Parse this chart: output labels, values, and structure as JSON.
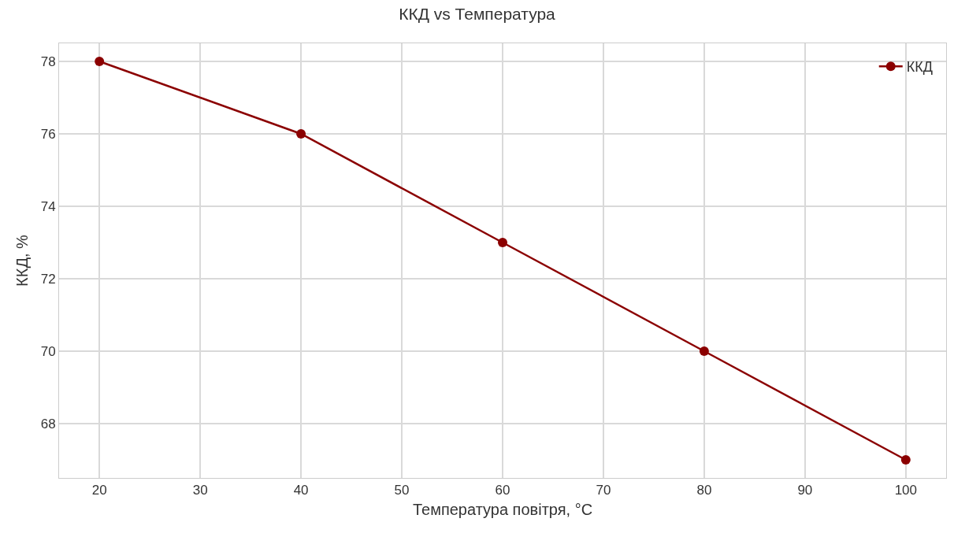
{
  "chart_data": {
    "type": "line",
    "title": "ККД vs Температура",
    "xlabel": "Температура повітря, °C",
    "ylabel": "ККД, %",
    "x": [
      20,
      40,
      60,
      80,
      100
    ],
    "series": [
      {
        "name": "ККД",
        "color": "#8b0000",
        "values": [
          78,
          76,
          73,
          70,
          67
        ]
      }
    ],
    "xlim": [
      16,
      104
    ],
    "xticks": [
      20,
      30,
      40,
      50,
      60,
      70,
      80,
      90,
      100
    ],
    "ylim": [
      66.5,
      78.5
    ],
    "yticks": [
      68,
      70,
      72,
      74,
      76,
      78
    ],
    "grid": true,
    "legend": "top right",
    "marker": "circle",
    "line_style": "solid"
  }
}
